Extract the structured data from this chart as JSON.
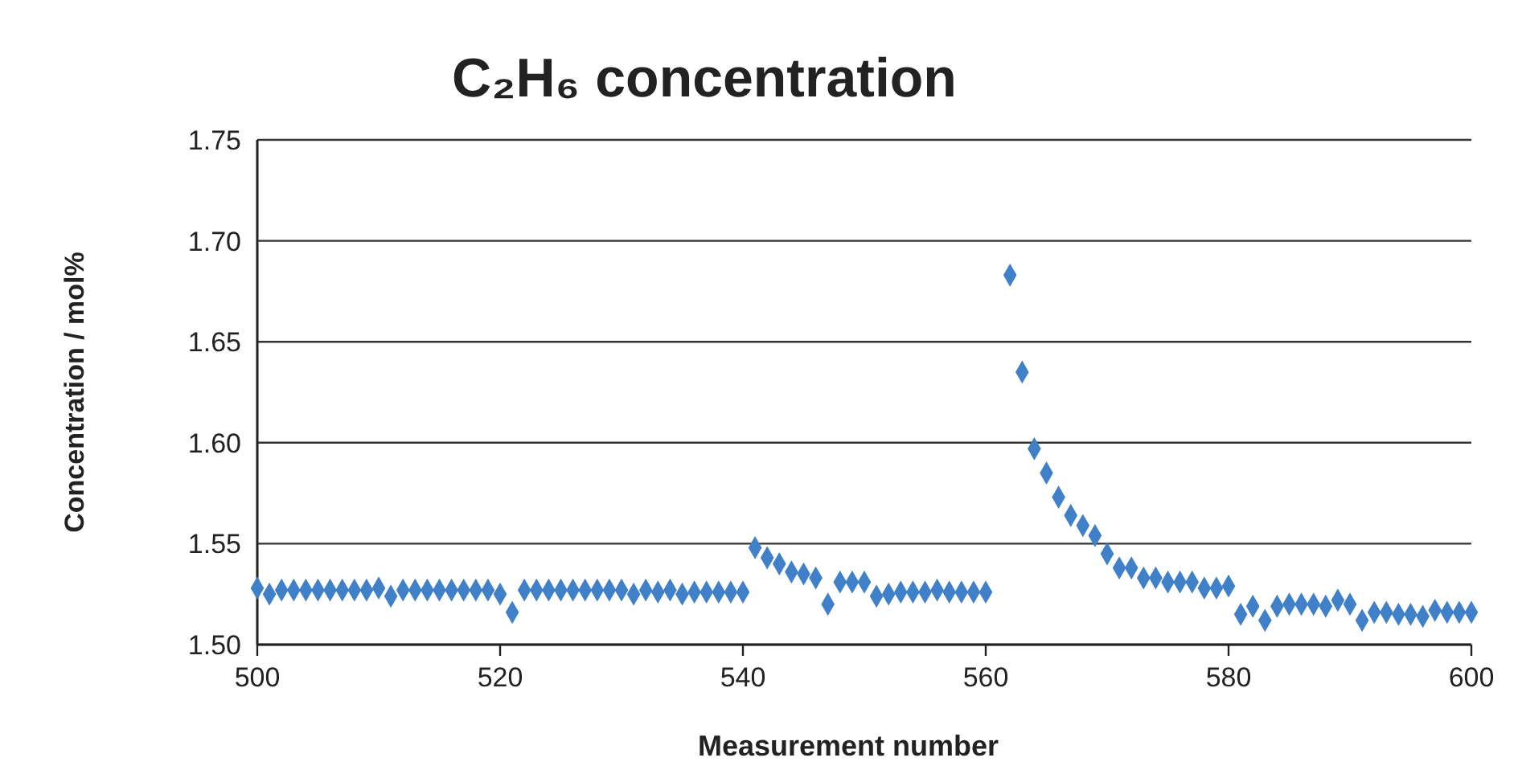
{
  "chart_data": {
    "type": "scatter",
    "title": "C₂H₆ concentration",
    "xlabel": "Measurement number",
    "ylabel": "Concentration / mol%",
    "x": [
      500,
      501,
      502,
      503,
      504,
      505,
      506,
      507,
      508,
      509,
      510,
      511,
      512,
      513,
      514,
      515,
      516,
      517,
      518,
      519,
      520,
      521,
      522,
      523,
      524,
      525,
      526,
      527,
      528,
      529,
      530,
      531,
      532,
      533,
      534,
      535,
      536,
      537,
      538,
      539,
      540,
      541,
      542,
      543,
      544,
      545,
      546,
      547,
      548,
      549,
      550,
      551,
      552,
      553,
      554,
      555,
      556,
      557,
      558,
      559,
      560,
      562,
      563,
      564,
      565,
      566,
      567,
      568,
      569,
      570,
      571,
      572,
      573,
      574,
      575,
      576,
      577,
      578,
      579,
      580,
      581,
      582,
      583,
      584,
      585,
      586,
      587,
      588,
      589,
      590,
      591,
      592,
      593,
      594,
      595,
      596,
      597,
      598,
      599,
      600
    ],
    "series": [
      {
        "color": "#3f80c8",
        "values": [
          1.528,
          1.525,
          1.527,
          1.527,
          1.527,
          1.527,
          1.527,
          1.527,
          1.527,
          1.527,
          1.528,
          1.524,
          1.527,
          1.527,
          1.527,
          1.527,
          1.527,
          1.527,
          1.527,
          1.527,
          1.525,
          1.516,
          1.527,
          1.527,
          1.527,
          1.527,
          1.527,
          1.527,
          1.527,
          1.527,
          1.527,
          1.525,
          1.527,
          1.526,
          1.527,
          1.525,
          1.526,
          1.526,
          1.526,
          1.526,
          1.526,
          1.548,
          1.543,
          1.54,
          1.536,
          1.535,
          1.533,
          1.52,
          1.531,
          1.531,
          1.531,
          1.524,
          1.525,
          1.526,
          1.526,
          1.526,
          1.527,
          1.526,
          1.526,
          1.526,
          1.526,
          1.683,
          1.635,
          1.597,
          1.585,
          1.573,
          1.564,
          1.559,
          1.554,
          1.545,
          1.538,
          1.538,
          1.533,
          1.533,
          1.531,
          1.531,
          1.531,
          1.528,
          1.528,
          1.529,
          1.515,
          1.519,
          1.512,
          1.519,
          1.52,
          1.52,
          1.52,
          1.519,
          1.522,
          1.52,
          1.512,
          1.516,
          1.516,
          1.515,
          1.515,
          1.514,
          1.517,
          1.516,
          1.516,
          1.516
        ]
      }
    ],
    "xlim": [
      500,
      600
    ],
    "xticks": [
      500,
      520,
      540,
      560,
      580,
      600
    ],
    "ylim": [
      1.5,
      1.75
    ],
    "yticks": [
      {
        "value": 1.5,
        "label": "1.50"
      },
      {
        "value": 1.55,
        "label": "1.55"
      },
      {
        "value": 1.6,
        "label": "1.60"
      },
      {
        "value": 1.65,
        "label": "1.65"
      },
      {
        "value": 1.7,
        "label": "1.70"
      },
      {
        "value": 1.75,
        "label": "1.75"
      }
    ],
    "grid": "y",
    "marker": "diamond"
  }
}
